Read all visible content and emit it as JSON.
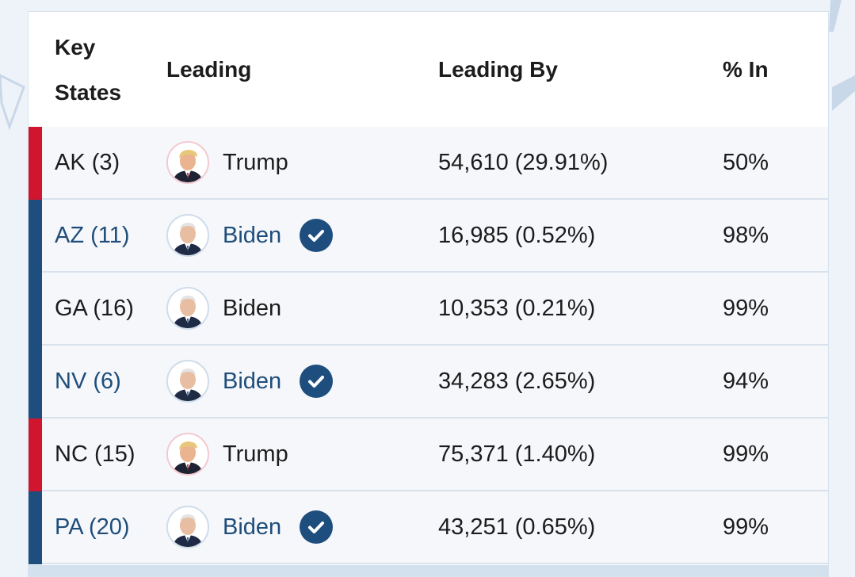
{
  "header": {
    "key_states_line1": "Key",
    "key_states_line2": "States",
    "leading": "Leading",
    "leading_by": "Leading By",
    "percent_in": "% In"
  },
  "colors": {
    "republican": "#d0162e",
    "democrat": "#1e4e7e",
    "called_text": "#1f4d7a",
    "default_text": "#1c1c1c"
  },
  "rows": [
    {
      "state": "AK (3)",
      "candidate": "Trump",
      "party": "republican",
      "called": false,
      "margin": "54,610 (29.91%)",
      "percent_in": "50%",
      "avatar_icon": "trump-avatar-icon"
    },
    {
      "state": "AZ (11)",
      "candidate": "Biden",
      "party": "democrat",
      "called": true,
      "margin": "16,985 (0.52%)",
      "percent_in": "98%",
      "avatar_icon": "biden-avatar-icon"
    },
    {
      "state": "GA (16)",
      "candidate": "Biden",
      "party": "democrat",
      "called": false,
      "margin": "10,353 (0.21%)",
      "percent_in": "99%",
      "avatar_icon": "biden-avatar-icon"
    },
    {
      "state": "NV (6)",
      "candidate": "Biden",
      "party": "democrat",
      "called": true,
      "margin": "34,283 (2.65%)",
      "percent_in": "94%",
      "avatar_icon": "biden-avatar-icon"
    },
    {
      "state": "NC (15)",
      "candidate": "Trump",
      "party": "republican",
      "called": false,
      "margin": "75,371 (1.40%)",
      "percent_in": "99%",
      "avatar_icon": "trump-avatar-icon"
    },
    {
      "state": "PA (20)",
      "candidate": "Biden",
      "party": "democrat",
      "called": true,
      "margin": "43,251 (0.65%)",
      "percent_in": "99%",
      "avatar_icon": "biden-avatar-icon"
    }
  ]
}
